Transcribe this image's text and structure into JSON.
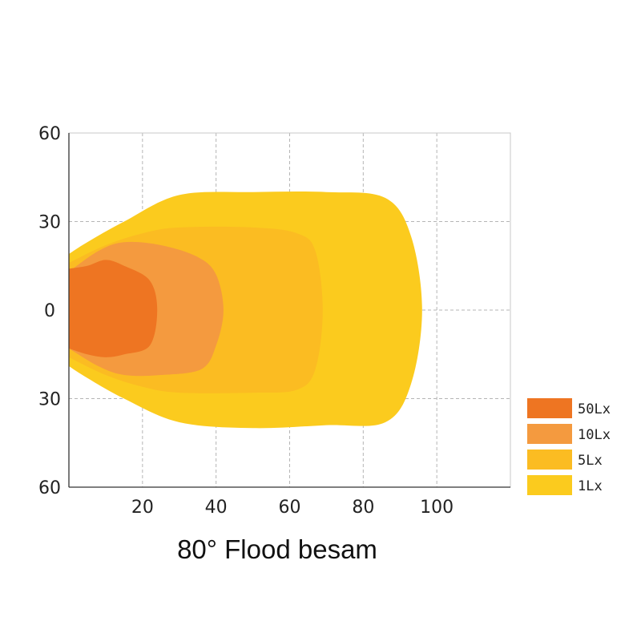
{
  "chart_data": {
    "type": "area",
    "title": "80° Flood besam",
    "xlabel": "",
    "ylabel": "",
    "xlim": [
      0,
      120
    ],
    "ylim": [
      -60,
      60
    ],
    "x_ticks": [
      20,
      40,
      60,
      80,
      100
    ],
    "y_ticks": [
      {
        "value": 60,
        "label": "60"
      },
      {
        "value": 30,
        "label": "30"
      },
      {
        "value": 0,
        "label": "0"
      },
      {
        "value": -30,
        "label": "30"
      },
      {
        "value": -60,
        "label": "60"
      }
    ],
    "grid": true,
    "grid_style": "dashed",
    "legend_position": "right",
    "series": [
      {
        "name": "1Lx",
        "color": "#FBCB1E",
        "points": [
          [
            0,
            19
          ],
          [
            5,
            23
          ],
          [
            15,
            30
          ],
          [
            30,
            39
          ],
          [
            50,
            40
          ],
          [
            70,
            40
          ],
          [
            86,
            38
          ],
          [
            93,
            25
          ],
          [
            96,
            0
          ],
          [
            93,
            -25
          ],
          [
            86,
            -38
          ],
          [
            70,
            -39
          ],
          [
            50,
            -40
          ],
          [
            30,
            -38
          ],
          [
            15,
            -30
          ],
          [
            5,
            -23
          ],
          [
            0,
            -19
          ]
        ]
      },
      {
        "name": "5Lx",
        "color": "#FBBC22",
        "points": [
          [
            0,
            16
          ],
          [
            10,
            22
          ],
          [
            20,
            26
          ],
          [
            30,
            28
          ],
          [
            50,
            28
          ],
          [
            62,
            26
          ],
          [
            67,
            20
          ],
          [
            69,
            0
          ],
          [
            67,
            -20
          ],
          [
            62,
            -27
          ],
          [
            50,
            -28
          ],
          [
            30,
            -28
          ],
          [
            20,
            -26
          ],
          [
            10,
            -22
          ],
          [
            0,
            -16
          ]
        ]
      },
      {
        "name": "10Lx",
        "color": "#F49A3F",
        "points": [
          [
            0,
            13
          ],
          [
            8,
            20
          ],
          [
            15,
            23
          ],
          [
            25,
            22
          ],
          [
            35,
            18
          ],
          [
            40,
            12
          ],
          [
            42,
            0
          ],
          [
            40,
            -12
          ],
          [
            36,
            -20
          ],
          [
            25,
            -22
          ],
          [
            15,
            -22
          ],
          [
            8,
            -19
          ],
          [
            0,
            -13
          ]
        ]
      },
      {
        "name": "50Lx",
        "color": "#EE7522",
        "points": [
          [
            0,
            14
          ],
          [
            5,
            15
          ],
          [
            10,
            17
          ],
          [
            15,
            15
          ],
          [
            22,
            10
          ],
          [
            24,
            0
          ],
          [
            22,
            -12
          ],
          [
            15,
            -15
          ],
          [
            10,
            -16
          ],
          [
            5,
            -15
          ],
          [
            0,
            -13
          ]
        ]
      }
    ]
  }
}
